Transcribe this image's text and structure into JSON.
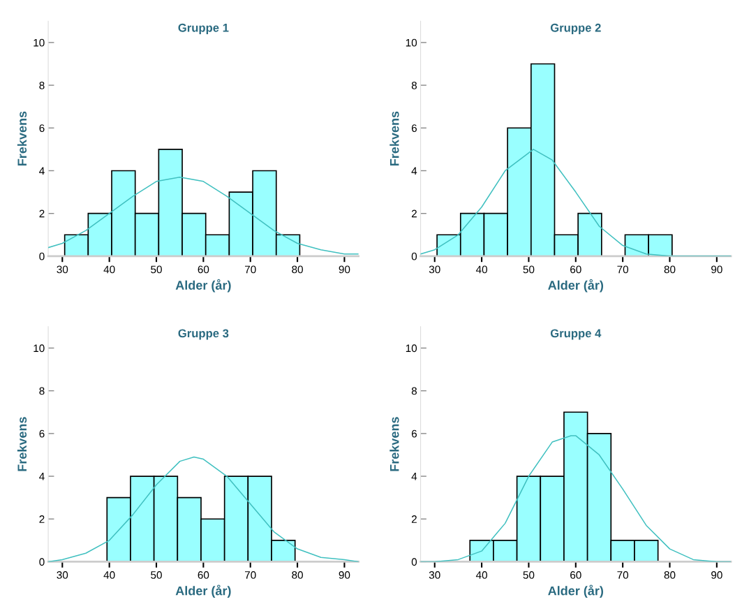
{
  "chart_data": [
    {
      "type": "histogram",
      "title": "Gruppe 1",
      "xlabel": "Alder (år)",
      "ylabel": "Frekvens",
      "color": "#99ffff",
      "bins": [
        30.5,
        35.5,
        40.5,
        45.5,
        50.5,
        55.5,
        60.5,
        65.5,
        70.5,
        75.5,
        80.5
      ],
      "values": [
        1,
        2,
        4,
        2,
        5,
        2,
        1,
        3,
        4,
        1
      ],
      "series": [
        {
          "type": "line",
          "color": "#40c0c0",
          "x": [
            27,
            30,
            35,
            40,
            45,
            50,
            55,
            60,
            65,
            70,
            75,
            80,
            85,
            90,
            93
          ],
          "values": [
            0.4,
            0.6,
            1.2,
            2.0,
            2.8,
            3.5,
            3.7,
            3.5,
            2.8,
            2.0,
            1.2,
            0.6,
            0.3,
            0.1,
            0.1
          ]
        }
      ],
      "xlim": [
        27,
        93
      ],
      "ylim": [
        0,
        11
      ],
      "xticks": [
        30,
        40,
        50,
        60,
        70,
        80,
        90
      ],
      "yticks": [
        0,
        2,
        4,
        6,
        8,
        10
      ],
      "grid": false
    },
    {
      "type": "histogram",
      "title": "Gruppe 2",
      "xlabel": "Alder (år)",
      "ylabel": "Frekvens",
      "color": "#99ffff",
      "bins": [
        30.5,
        35.5,
        40.5,
        45.5,
        50.5,
        55.5,
        60.5,
        65.5,
        70.5,
        75.5,
        80.5
      ],
      "values": [
        1,
        2,
        2,
        6,
        9,
        1,
        2,
        0,
        1,
        1
      ],
      "series": [
        {
          "type": "line",
          "color": "#40c0c0",
          "x": [
            27,
            30,
            35,
            40,
            45,
            51,
            55,
            60,
            65,
            70,
            75,
            80,
            85,
            90,
            93
          ],
          "values": [
            0.1,
            0.3,
            1.0,
            2.3,
            4.0,
            5.0,
            4.5,
            3.0,
            1.4,
            0.5,
            0.1,
            0.0,
            0.0,
            0.0,
            0.0
          ]
        }
      ],
      "xlim": [
        27,
        93
      ],
      "ylim": [
        0,
        11
      ],
      "xticks": [
        30,
        40,
        50,
        60,
        70,
        80,
        90
      ],
      "yticks": [
        0,
        2,
        4,
        6,
        8,
        10
      ],
      "grid": false
    },
    {
      "type": "histogram",
      "title": "Gruppe 3",
      "xlabel": "Alder (år)",
      "ylabel": "Frekvens",
      "color": "#99ffff",
      "bins": [
        39.5,
        44.5,
        49.5,
        54.5,
        59.5,
        64.5,
        69.5,
        74.5,
        79.5
      ],
      "values": [
        3,
        4,
        4,
        3,
        2,
        4,
        4,
        1
      ],
      "series": [
        {
          "type": "line",
          "color": "#40c0c0",
          "x": [
            27,
            30,
            35,
            40,
            45,
            50,
            55,
            58,
            60,
            65,
            70,
            75,
            80,
            85,
            90,
            93
          ],
          "values": [
            0.0,
            0.1,
            0.4,
            1.0,
            2.2,
            3.6,
            4.7,
            4.9,
            4.8,
            4.0,
            2.7,
            1.4,
            0.6,
            0.2,
            0.1,
            0.0
          ]
        }
      ],
      "xlim": [
        27,
        93
      ],
      "ylim": [
        0,
        11
      ],
      "xticks": [
        30,
        40,
        50,
        60,
        70,
        80,
        90
      ],
      "yticks": [
        0,
        2,
        4,
        6,
        8,
        10
      ],
      "grid": false
    },
    {
      "type": "histogram",
      "title": "Gruppe 4",
      "xlabel": "Alder (år)",
      "ylabel": "Frekvens",
      "color": "#99ffff",
      "bins": [
        37.5,
        42.5,
        47.5,
        52.5,
        57.5,
        62.5,
        67.5,
        72.5,
        77.5
      ],
      "values": [
        1,
        1,
        4,
        4,
        7,
        6,
        1,
        1
      ],
      "series": [
        {
          "type": "line",
          "color": "#40c0c0",
          "x": [
            27,
            30,
            35,
            40,
            45,
            50,
            55,
            59,
            60,
            65,
            70,
            75,
            80,
            85,
            90,
            93
          ],
          "values": [
            0.0,
            0.0,
            0.1,
            0.5,
            1.8,
            4.0,
            5.6,
            5.9,
            5.9,
            5.0,
            3.4,
            1.7,
            0.6,
            0.1,
            0.0,
            0.0
          ]
        }
      ],
      "xlim": [
        27,
        93
      ],
      "ylim": [
        0,
        11
      ],
      "xticks": [
        30,
        40,
        50,
        60,
        70,
        80,
        90
      ],
      "yticks": [
        0,
        2,
        4,
        6,
        8,
        10
      ],
      "grid": false
    }
  ]
}
